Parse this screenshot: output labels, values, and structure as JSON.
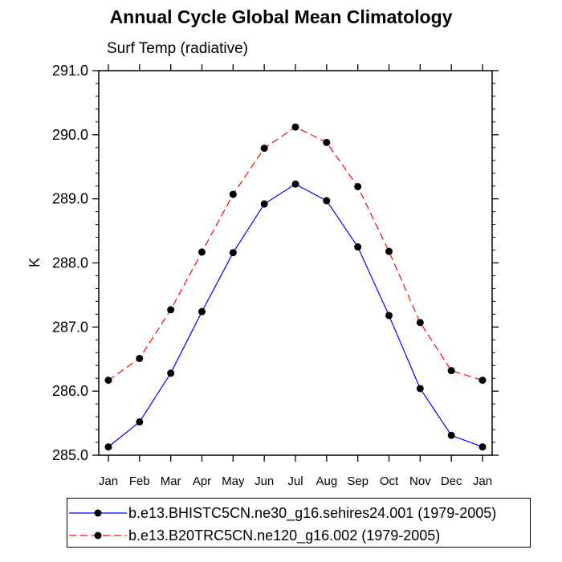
{
  "chart_data": {
    "type": "line",
    "title": "Annual Cycle Global Mean Climatology",
    "subtitle": "Surf Temp (radiative)",
    "xlabel": "",
    "ylabel": "K",
    "categories": [
      "Jan",
      "Feb",
      "Mar",
      "Apr",
      "May",
      "Jun",
      "Jul",
      "Aug",
      "Sep",
      "Oct",
      "Nov",
      "Dec",
      "Jan"
    ],
    "ylim": [
      285.0,
      291.0
    ],
    "yticks": [
      285.0,
      286.0,
      287.0,
      288.0,
      289.0,
      290.0,
      291.0
    ],
    "ytick_labels": [
      "285.0",
      "286.0",
      "287.0",
      "288.0",
      "289.0",
      "290.0",
      "291.0"
    ],
    "grid": false,
    "legend_placement": "bottom",
    "series": [
      {
        "name": "b.e13.BHISTC5CN.ne30_g16.sehires24.001 (1979-2005)",
        "color": "#0000ff",
        "line_style": "solid",
        "values": [
          285.13,
          285.52,
          286.28,
          287.24,
          288.16,
          288.92,
          289.23,
          288.97,
          288.25,
          287.18,
          286.04,
          285.31,
          285.13
        ]
      },
      {
        "name": "b.e13.B20TRC5CN.ne120_g16.002 (1979-2005)",
        "color": "#ff0000",
        "line_style": "dashed",
        "values": [
          286.17,
          286.51,
          287.27,
          288.17,
          289.07,
          289.79,
          290.12,
          289.88,
          289.19,
          288.18,
          287.07,
          286.32,
          286.17
        ]
      }
    ]
  }
}
